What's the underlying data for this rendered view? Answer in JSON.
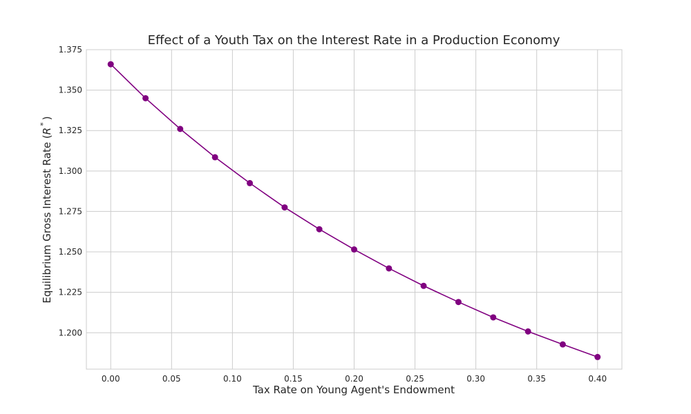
{
  "chart_data": {
    "type": "line",
    "title": "Effect of a Youth Tax on the Interest Rate in a Production Economy",
    "xlabel": "Tax Rate on Young Agent's Endowment",
    "ylabel_text": "Equilibrium Gross Interest Rate (",
    "ylabel_symbol": "R",
    "ylabel_sup": "*",
    "ylabel_close": ")",
    "xlim": [
      -0.02,
      0.42
    ],
    "ylim": [
      1.1775,
      1.375
    ],
    "xticks": [
      "0.00",
      "0.05",
      "0.10",
      "0.15",
      "0.20",
      "0.25",
      "0.30",
      "0.35",
      "0.40"
    ],
    "yticks": [
      "1.200",
      "1.225",
      "1.250",
      "1.275",
      "1.300",
      "1.325",
      "1.350",
      "1.375"
    ],
    "grid": true,
    "color": "#800080",
    "series": [
      {
        "x": [
          0.0,
          0.0286,
          0.0571,
          0.0857,
          0.1143,
          0.1429,
          0.1714,
          0.2,
          0.2286,
          0.2571,
          0.2857,
          0.3143,
          0.3429,
          0.3714,
          0.4
        ],
        "y": [
          1.366,
          1.345,
          1.326,
          1.3085,
          1.2925,
          1.2775,
          1.264,
          1.2515,
          1.2398,
          1.229,
          1.219,
          1.2095,
          1.2008,
          1.1928,
          1.185
        ]
      }
    ]
  }
}
